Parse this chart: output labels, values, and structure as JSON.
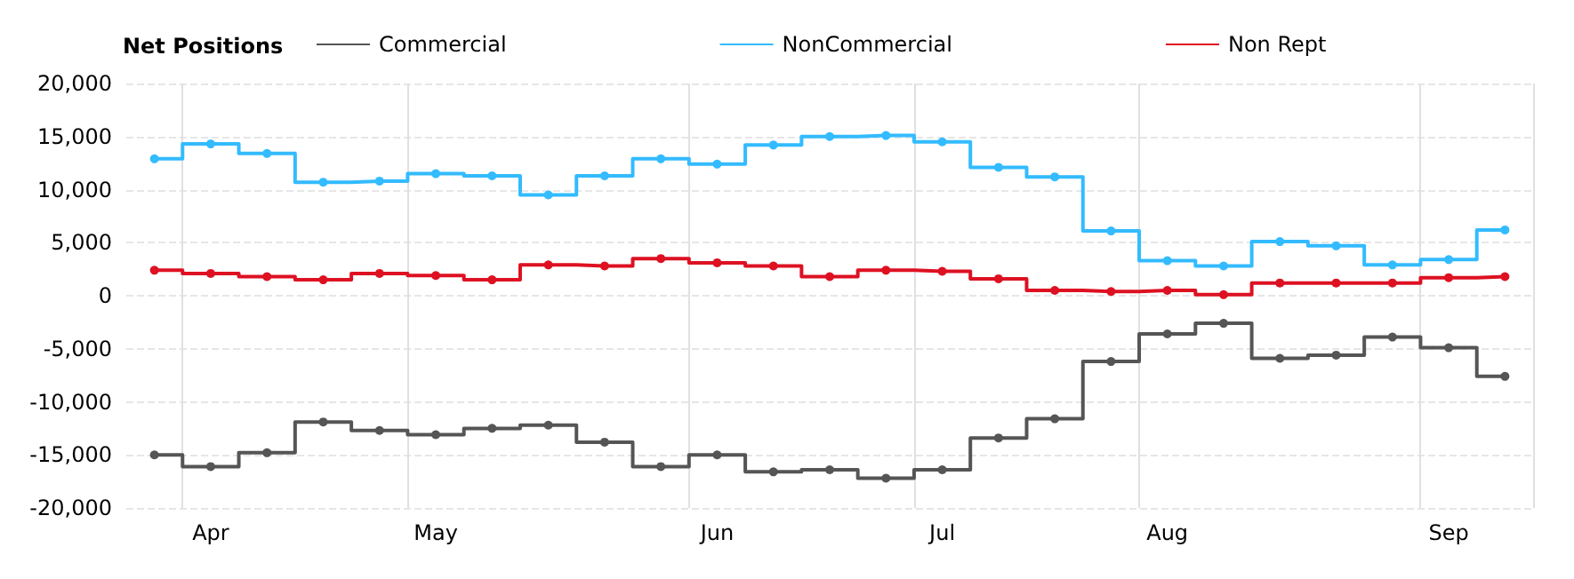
{
  "chart_data": {
    "type": "step",
    "legend_title": "Net Positions",
    "legend": "top left",
    "grid": true,
    "marker": "circle",
    "line_style": "solid",
    "categories": [
      null,
      "Apr",
      null,
      null,
      null,
      "May",
      null,
      null,
      null,
      null,
      "Jun",
      null,
      null,
      null,
      "Jul",
      null,
      null,
      null,
      "Aug",
      null,
      null,
      null,
      null,
      "Sep",
      null
    ],
    "ylim": [
      -20000,
      20000
    ],
    "yticks": [
      {
        "value": -20000,
        "label": "-20,000"
      },
      {
        "value": -15000,
        "label": "-15,000"
      },
      {
        "value": -10000,
        "label": "-10,000"
      },
      {
        "value": -5000,
        "label": "-5,000"
      },
      0,
      {
        "value": 5000,
        "label": "5,000"
      },
      {
        "value": 10000,
        "label": "10,000"
      },
      {
        "value": 15000,
        "label": "15,000"
      },
      {
        "value": 20000,
        "label": "20,000"
      }
    ],
    "series": [
      {
        "name": "Commercial",
        "color": "#555555",
        "values": [
          -15000,
          -16100,
          -14800,
          -11900,
          -12700,
          -13100,
          -12500,
          -12200,
          -13800,
          -16100,
          -15000,
          -16600,
          -16400,
          -17200,
          -16400,
          -13400,
          -11600,
          -6200,
          -3600,
          -2600,
          -5900,
          -5600,
          -3900,
          -4900,
          -7600
        ]
      },
      {
        "name": "NonCommercial",
        "color": "#33bbff",
        "values": [
          12900,
          14300,
          13400,
          10700,
          10800,
          11500,
          11300,
          9500,
          11300,
          12900,
          12400,
          14200,
          15000,
          15100,
          14500,
          12100,
          11200,
          6100,
          3300,
          2800,
          5100,
          4700,
          2900,
          3400,
          6200
        ]
      },
      {
        "name": "Non Rept",
        "color": "#dd1122",
        "values": [
          2400,
          2100,
          1800,
          1500,
          2100,
          1900,
          1500,
          2900,
          2800,
          3500,
          3100,
          2800,
          1800,
          2400,
          2300,
          1600,
          500,
          400,
          500,
          100,
          1200,
          1200,
          1200,
          1700,
          1800
        ]
      }
    ]
  }
}
